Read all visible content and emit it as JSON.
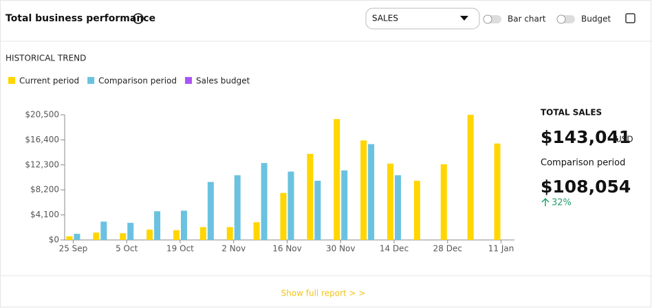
{
  "header": {
    "title": "Total business performance",
    "dropdown": "SALES",
    "toggles": [
      "Bar chart",
      "Budget"
    ]
  },
  "section_title": "HISTORICAL TREND",
  "chart_data": {
    "type": "bar",
    "categories": [
      "25 Sep",
      null,
      "5 Oct",
      null,
      "19 Oct",
      null,
      "2 Nov",
      null,
      "16 Nov",
      null,
      "30 Nov",
      null,
      "14 Dec",
      null,
      "28 Dec",
      null,
      "11 Jan"
    ],
    "series": [
      {
        "name": "Current period",
        "color": "#ffd600",
        "values": [
          600,
          1200,
          1100,
          1700,
          1600,
          2100,
          2100,
          2900,
          7700,
          14100,
          19800,
          16300,
          12500,
          9700,
          12400,
          20500,
          15800
        ]
      },
      {
        "name": "Comparison period",
        "color": "#6ac2e0",
        "values": [
          1000,
          3000,
          2800,
          4700,
          4800,
          9500,
          10600,
          12600,
          11200,
          9700,
          11400,
          15700,
          10600,
          null,
          null,
          null,
          null
        ]
      },
      {
        "name": "Sales budget",
        "color": "#a855f7",
        "values": [
          null,
          null,
          null,
          null,
          null,
          null,
          null,
          null,
          null,
          null,
          null,
          null,
          null,
          null,
          null,
          null,
          null
        ]
      }
    ],
    "ylim": [
      0,
      20500
    ],
    "yticks": [
      {
        "value": 0,
        "label": "$0"
      },
      {
        "value": 4100,
        "label": "$4,100"
      },
      {
        "value": 8200,
        "label": "$8,200"
      },
      {
        "value": 12300,
        "label": "$12,300"
      },
      {
        "value": 16400,
        "label": "$16,400"
      },
      {
        "value": 20500,
        "label": "$20,500"
      }
    ],
    "grid": false,
    "legend": "top"
  },
  "summary": {
    "total_label": "TOTAL SALES",
    "total": "$143,041",
    "currency": "USD",
    "comparison_label": "Comparison period",
    "comparison": "$108,054",
    "change": "32%"
  },
  "footer": {
    "link": "Show full report > >"
  }
}
